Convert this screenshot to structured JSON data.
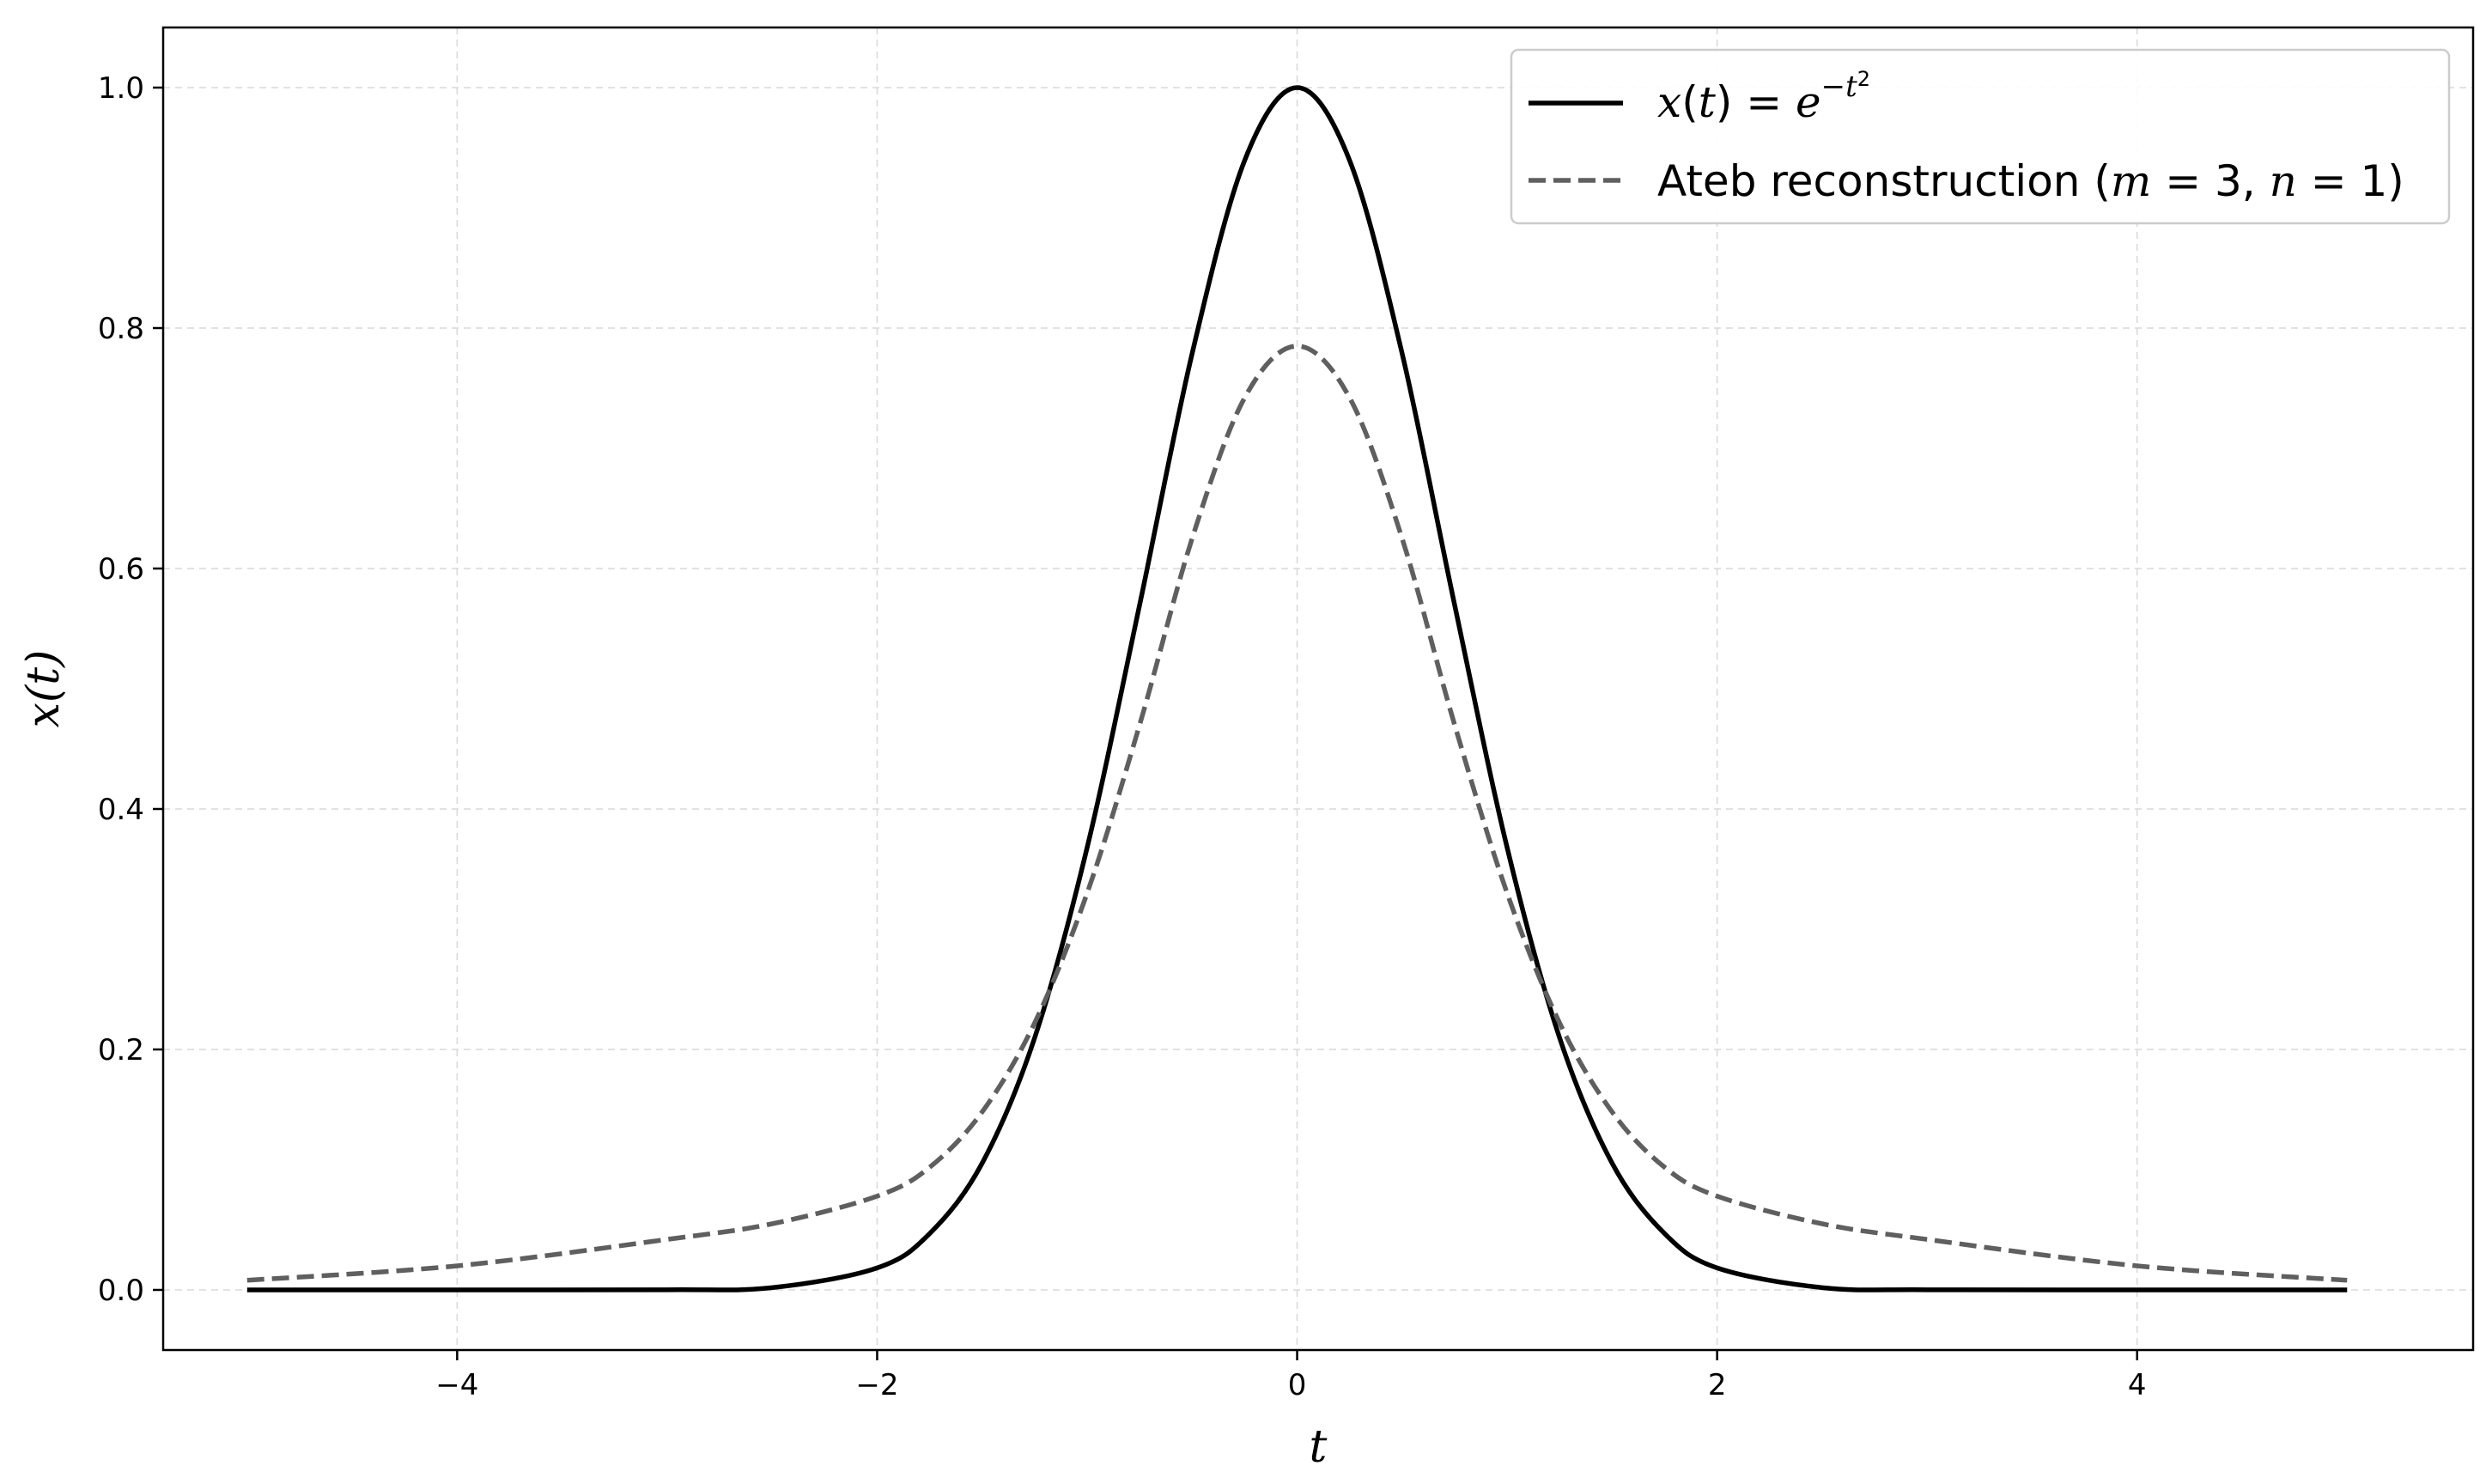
{
  "chart_data": {
    "type": "line",
    "xlabel": "t",
    "ylabel": "x(t)",
    "xlim": [
      -5.4,
      5.6
    ],
    "ylim": [
      -0.05,
      1.05
    ],
    "xticks": [
      -4,
      -2,
      0,
      2,
      4
    ],
    "xtick_labels": [
      "−4",
      "−2",
      "0",
      "2",
      "4"
    ],
    "yticks": [
      0.0,
      0.2,
      0.4,
      0.6,
      0.8,
      1.0
    ],
    "ytick_labels": [
      "0.0",
      "0.2",
      "0.4",
      "0.6",
      "0.8",
      "1.0"
    ],
    "grid": true,
    "legend_position": "top-right",
    "series": [
      {
        "name": "x(t) = e^{-t^2}",
        "style": "solid",
        "color": "#000000",
        "x": [
          -5,
          -4,
          -3,
          -2.5,
          -2,
          -1.75,
          -1.5,
          -1.25,
          -1,
          -0.75,
          -0.5,
          -0.25,
          0,
          0.25,
          0.5,
          0.75,
          1,
          1.25,
          1.5,
          1.75,
          2,
          2.5,
          3,
          4,
          5
        ],
        "y": [
          0.0,
          0.0,
          0.0001,
          0.0019,
          0.0183,
          0.0468,
          0.1054,
          0.2096,
          0.3679,
          0.5698,
          0.7788,
          0.9394,
          1.0,
          0.9394,
          0.7788,
          0.5698,
          0.3679,
          0.2096,
          0.1054,
          0.0468,
          0.0183,
          0.0019,
          0.0001,
          0.0,
          0.0
        ]
      },
      {
        "name": "Ateb reconstruction (m = 3, n = 1)",
        "style": "dashed",
        "color": "#5f5f5f",
        "x": [
          -5,
          -4,
          -3,
          -2.5,
          -2,
          -1.75,
          -1.5,
          -1.25,
          -1,
          -0.75,
          -0.5,
          -0.25,
          0,
          0.25,
          0.5,
          0.75,
          1,
          1.25,
          1.5,
          1.75,
          2,
          2.5,
          3,
          4,
          5
        ],
        "y": [
          0.008,
          0.02,
          0.042,
          0.055,
          0.078,
          0.102,
          0.148,
          0.222,
          0.33,
          0.47,
          0.625,
          0.742,
          0.785,
          0.742,
          0.625,
          0.47,
          0.33,
          0.222,
          0.148,
          0.102,
          0.078,
          0.055,
          0.042,
          0.02,
          0.008
        ]
      }
    ]
  },
  "legend": {
    "entry1_parts": {
      "x": "x",
      "lp": "(",
      "t": "t",
      "rp": ")",
      "eq": " = ",
      "e": "e",
      "exp": "−t",
      "exp2": "2"
    },
    "entry2_parts": {
      "text": "Ateb reconstruction (",
      "m": "m",
      "eq1": " = 3, ",
      "n": "n",
      "eq2": " = 1)"
    }
  }
}
